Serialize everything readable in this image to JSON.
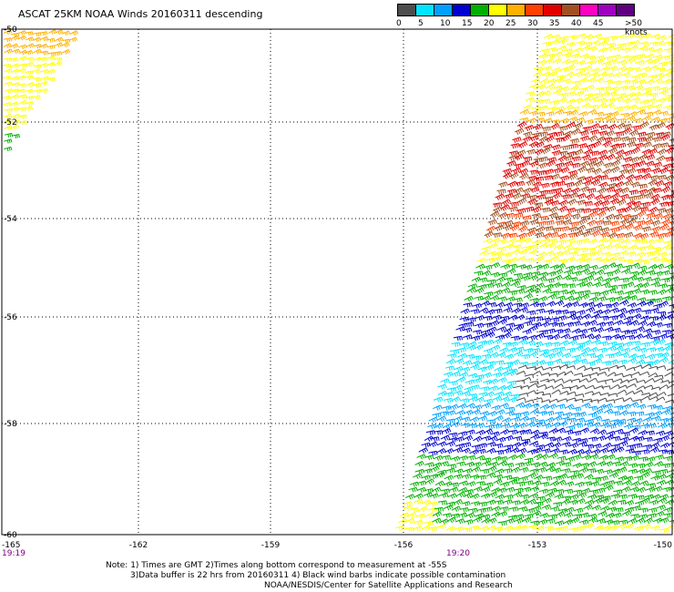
{
  "title": "ASCAT 25KM NOAA Winds 20160311 descending",
  "legend": {
    "unit_label": ">50 knots",
    "ticks": [
      "0",
      "5",
      "10",
      "15",
      "20",
      "25",
      "30",
      "35",
      "40",
      "45"
    ],
    "colors": [
      "#4d4d4d",
      "#00e5ff",
      "#00a0ff",
      "#0000d0",
      "#00b000",
      "#ffff00",
      "#ffb000",
      "#ff4000",
      "#e00000",
      "#a05020",
      "#ff00c0",
      "#a000c0",
      "#600080"
    ]
  },
  "axes": {
    "lat_labels": [
      "-50",
      "-52",
      "-54",
      "-56",
      "-58",
      "-60"
    ],
    "lon_labels": [
      "-165",
      "-162",
      "-159",
      "-156",
      "-153",
      "-150"
    ],
    "time_labels": [
      "19:19",
      "19:20"
    ]
  },
  "notes": [
    "Note: 1) Times are GMT 2)Times along bottom correspond to measurement at -55S",
    "3)Data buffer is 22 hrs from 20160311 4) Black wind barbs indicate possible contamination",
    "NOAA/NESDIS/Center for Satellite Applications and Research"
  ]
}
